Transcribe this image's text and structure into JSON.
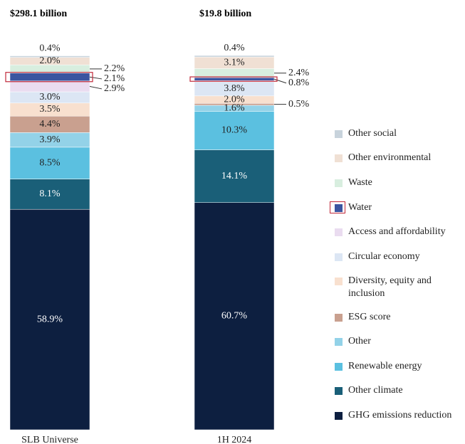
{
  "chart_data": {
    "type": "stacked-bar",
    "titles": [
      "$298.1 billion",
      "$19.8 billion"
    ],
    "categories": [
      "SLB Universe",
      "1H 2024"
    ],
    "ylim": [
      0,
      100
    ],
    "series": [
      {
        "name": "Other social",
        "color": "#c8d3dc",
        "values": [
          0.4,
          0.4
        ],
        "value_labels": [
          "0.4%",
          "0.4%"
        ]
      },
      {
        "name": "Other environmental",
        "color": "#f0e0d4",
        "values": [
          2.0,
          3.1
        ],
        "value_labels": [
          "2.0%",
          "3.1%"
        ]
      },
      {
        "name": "Waste",
        "color": "#d8eedf",
        "values": [
          2.2,
          2.4
        ],
        "value_labels": [
          "2.2%",
          "2.4%"
        ]
      },
      {
        "name": "Water",
        "color": "#3b55a0",
        "values": [
          2.1,
          0.8
        ],
        "value_labels": [
          "2.1%",
          "0.8%"
        ]
      },
      {
        "name": "Access and affordability",
        "color": "#eadcf0",
        "values": [
          2.9,
          0.3
        ],
        "value_labels": [
          "2.9%",
          null
        ]
      },
      {
        "name": "Circular economy",
        "color": "#dce6f4",
        "values": [
          3.0,
          3.8
        ],
        "value_labels": [
          "3.0%",
          "3.8%"
        ]
      },
      {
        "name": "Diversity, equity and inclusion",
        "color": "#f8e0cf",
        "values": [
          3.5,
          2.0
        ],
        "value_labels": [
          "3.5%",
          "2.0%"
        ]
      },
      {
        "name": "ESG score",
        "color": "#c9a08f",
        "values": [
          4.4,
          0.5
        ],
        "value_labels": [
          "4.4%",
          "0.5%"
        ]
      },
      {
        "name": "Other",
        "color": "#93d2e8",
        "values": [
          3.9,
          1.6
        ],
        "value_labels": [
          "3.9%",
          "1.6%"
        ]
      },
      {
        "name": "Renewable energy",
        "color": "#5bc0e0",
        "values": [
          8.5,
          10.3
        ],
        "value_labels": [
          "8.5%",
          "10.3%"
        ]
      },
      {
        "name": "Other climate",
        "color": "#1a5f78",
        "values": [
          8.1,
          14.1
        ],
        "value_labels": [
          "8.1%",
          "14.1%"
        ]
      },
      {
        "name": "GHG emissions reduction",
        "color": "#0d1f40",
        "values": [
          58.9,
          60.7
        ],
        "value_labels": [
          "58.9%",
          "60.7%"
        ]
      }
    ]
  }
}
